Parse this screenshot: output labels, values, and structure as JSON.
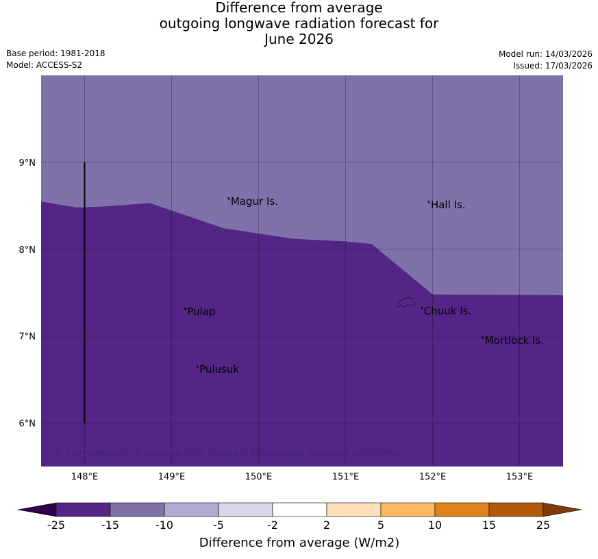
{
  "title": {
    "line1": "Difference from average",
    "line2": "outgoing longwave radiation forecast for",
    "line3": "June 2026"
  },
  "meta": {
    "base_period": "Base period: 1981-2018",
    "model": "Model: ACCESS-S2",
    "model_run": "Model run: 14/03/2026",
    "issued": "Issued: 17/03/2026"
  },
  "map": {
    "lon_range": [
      147.5,
      153.5
    ],
    "lat_range": [
      5.5,
      10.0
    ],
    "lon_ticks": [
      148,
      149,
      150,
      151,
      152,
      153
    ],
    "lat_ticks": [
      6,
      7,
      8,
      9
    ],
    "lon_tick_labels": [
      "148°E",
      "149°E",
      "150°E",
      "151°E",
      "152°E",
      "153°E"
    ],
    "lat_tick_labels": [
      "6°N",
      "7°N",
      "8°N",
      "9°N"
    ],
    "regions": {
      "upper_value_band": "-10 to -15",
      "lower_value_band": "-15 to -25",
      "upper_color": "#7f72ab",
      "lower_color": "#542487"
    },
    "boundary": [
      [
        147.5,
        8.55
      ],
      [
        147.9,
        8.48
      ],
      [
        148.2,
        8.49
      ],
      [
        148.75,
        8.53
      ],
      [
        149.6,
        8.24
      ],
      [
        150.4,
        8.12
      ],
      [
        151.0,
        8.09
      ],
      [
        151.3,
        8.06
      ],
      [
        152.0,
        7.48
      ],
      [
        153.5,
        7.47
      ]
    ],
    "meridian_line": {
      "lon": 148,
      "lat_from": 6.0,
      "lat_to": 9.0
    },
    "places": [
      {
        "name": "Magur Is.",
        "lon": 149.68,
        "lat": 8.55
      },
      {
        "name": "Hall Is.",
        "lon": 151.98,
        "lat": 8.51
      },
      {
        "name": "Pulap",
        "lon": 149.18,
        "lat": 7.28
      },
      {
        "name": "Chuuk Is.",
        "lon": 151.9,
        "lat": 7.29
      },
      {
        "name": "Mortlock Is.",
        "lon": 152.6,
        "lat": 6.95
      },
      {
        "name": "Pulusuk",
        "lon": 149.32,
        "lat": 6.62
      }
    ],
    "copyright": "© Commonwealth of Australia 2026, Bureau of Meteorology, supported by COSPPac"
  },
  "colorbar": {
    "title": "Difference from average (W/m2)",
    "labels": [
      "-25",
      "-15",
      "-10",
      "-5",
      "-2",
      "2",
      "5",
      "10",
      "15",
      "25"
    ],
    "colors": [
      "#542487",
      "#7f72ab",
      "#b1aad1",
      "#d7d7e9",
      "#ffffff",
      "#fde0b5",
      "#fbb862",
      "#e0821b",
      "#b25a0a"
    ],
    "extend_low_color": "#2d004b",
    "extend_high_color": "#7f3b08"
  }
}
